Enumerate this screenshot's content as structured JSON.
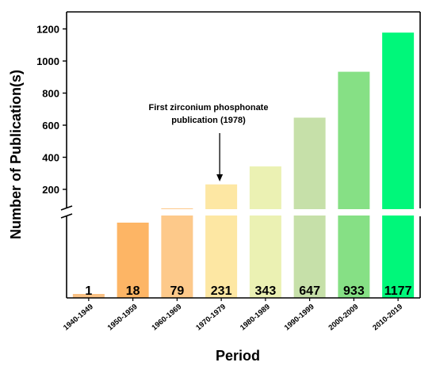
{
  "chart_data": {
    "type": "bar",
    "title": "",
    "xlabel": "Period",
    "ylabel": "Number of Publication(s)",
    "categories": [
      "1940-1949",
      "1950-1959",
      "1960-1969",
      "1970-1979",
      "1980-1989",
      "1990-1999",
      "2000-2009",
      "2010-2019"
    ],
    "values": [
      1,
      18,
      79,
      231,
      343,
      647,
      933,
      1177
    ],
    "value_labels": [
      "1",
      "18",
      "79",
      "231",
      "343",
      "647",
      "933",
      "1177"
    ],
    "bar_colors": [
      "#F9C184",
      "#FDB565",
      "#FDC98A",
      "#FDE7A3",
      "#EBF1B3",
      "#C6E0A9",
      "#86E085",
      "#00F77A"
    ],
    "y_ticks": [
      200,
      400,
      600,
      800,
      1000,
      1200
    ],
    "y_tick_labels": [
      "200",
      "400",
      "600",
      "800",
      "1000",
      "1200"
    ],
    "ylim": [
      0,
      1250
    ],
    "axis_break": true,
    "annotation": {
      "lines": [
        "First zirconium phosphonate",
        "publication (1978)"
      ],
      "category": "1970-1979"
    }
  }
}
